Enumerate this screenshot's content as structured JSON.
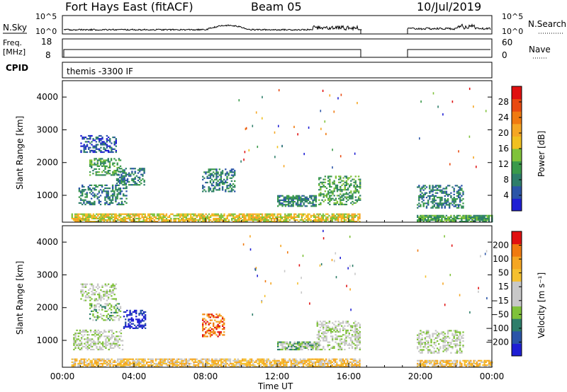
{
  "header": {
    "station": "Fort Hays East (fitACF)",
    "beam": "Beam 05",
    "date": "10/Jul/2019"
  },
  "noise_panel": {
    "left_label": "N.Sky",
    "right_label": "N.Search",
    "left_ticks": [
      "10^5",
      "10^0"
    ],
    "right_ticks": [
      "10^5",
      "10^0"
    ]
  },
  "freq_panel": {
    "left_label_line1": "Freq.",
    "left_label_line2": "[MHz]",
    "right_label": "Nave",
    "left_ticks": [
      "18",
      "8"
    ],
    "right_ticks": [
      "60",
      "0"
    ]
  },
  "cpid_panel": {
    "label": "CPID",
    "text": "themis -3300 IF"
  },
  "x_axis": {
    "label": "Time UT",
    "ticks": [
      "00:00",
      "04:00",
      "08:00",
      "12:00",
      "16:00",
      "20:00",
      "00:00"
    ]
  },
  "chart_data": [
    {
      "type": "heatmap",
      "quantity": "power",
      "xlabel": "Time UT",
      "ylabel": "Slant Range [km]",
      "xlim_hours": [
        0,
        24
      ],
      "ylim_km": [
        180,
        4500
      ],
      "y_ticks": [
        "1000",
        "2000",
        "3000",
        "4000"
      ],
      "colorbar": {
        "label": "Power [dB]",
        "ticks": [
          "4",
          "8",
          "12",
          "16",
          "20",
          "24",
          "28"
        ],
        "colors": [
          "#1f1fd4",
          "#2b55a8",
          "#2e7e6a",
          "#3a9a4a",
          "#7fc23a",
          "#f0c020",
          "#f5a623",
          "#f07a10",
          "#e84a10",
          "#e01010"
        ]
      },
      "regions": [
        {
          "t0": 0.9,
          "t1": 3.6,
          "r0": 700,
          "r1": 1300,
          "level": 2
        },
        {
          "t0": 1.5,
          "t1": 3.2,
          "r0": 1600,
          "r1": 2100,
          "level": 3
        },
        {
          "t0": 1.0,
          "t1": 3.0,
          "r0": 2300,
          "r1": 2800,
          "level": 1
        },
        {
          "t0": 3.0,
          "t1": 4.6,
          "r0": 1300,
          "r1": 1800,
          "level": 2
        },
        {
          "t0": 7.8,
          "t1": 9.6,
          "r0": 1100,
          "r1": 1800,
          "level": 2
        },
        {
          "t0": 12.0,
          "t1": 14.2,
          "r0": 650,
          "r1": 1000,
          "level": 2
        },
        {
          "t0": 14.3,
          "t1": 16.6,
          "r0": 700,
          "r1": 1600,
          "level": 3
        },
        {
          "t0": 19.8,
          "t1": 22.4,
          "r0": 600,
          "r1": 1300,
          "level": 2
        },
        {
          "t0": 0.5,
          "t1": 16.6,
          "r0": 180,
          "r1": 450,
          "level": 5
        },
        {
          "t0": 19.8,
          "t1": 24.0,
          "r0": 180,
          "r1": 400,
          "level": 3
        }
      ]
    },
    {
      "type": "heatmap",
      "quantity": "velocity",
      "xlabel": "Time UT",
      "ylabel": "Slant Range [km]",
      "xlim_hours": [
        0,
        24
      ],
      "ylim_km": [
        180,
        4500
      ],
      "y_ticks": [
        "1000",
        "2000",
        "3000",
        "4000"
      ],
      "colorbar": {
        "label": "Velocity [m s⁻¹]",
        "ticks": [
          "200",
          "100",
          "50",
          "15",
          "−15",
          "−50",
          "−100",
          "−200"
        ],
        "colors": [
          "#1f1fd4",
          "#2b55a8",
          "#2e7e6a",
          "#7fc23a",
          "#c8c8c8",
          "#c8c8c8",
          "#f5c030",
          "#f5a623",
          "#f07a10",
          "#e01010"
        ]
      },
      "regions": [
        {
          "t0": 0.6,
          "t1": 3.4,
          "r0": 700,
          "r1": 1300,
          "level": 4
        },
        {
          "t0": 1.0,
          "t1": 3.0,
          "r0": 2200,
          "r1": 2700,
          "level": 4
        },
        {
          "t0": 1.5,
          "t1": 3.2,
          "r0": 1600,
          "r1": 2100,
          "level": 3
        },
        {
          "t0": 3.4,
          "t1": 4.6,
          "r0": 1350,
          "r1": 1900,
          "level": 0
        },
        {
          "t0": 7.8,
          "t1": 9.0,
          "r0": 1100,
          "r1": 1800,
          "level": 8
        },
        {
          "t0": 12.0,
          "t1": 14.3,
          "r0": 700,
          "r1": 950,
          "level": 3
        },
        {
          "t0": 14.2,
          "t1": 16.6,
          "r0": 700,
          "r1": 1600,
          "level": 4
        },
        {
          "t0": 19.8,
          "t1": 22.4,
          "r0": 600,
          "r1": 1300,
          "level": 4
        },
        {
          "t0": 0.5,
          "t1": 16.6,
          "r0": 180,
          "r1": 450,
          "level": 6
        },
        {
          "t0": 19.8,
          "t1": 24.0,
          "r0": 180,
          "r1": 400,
          "level": 6
        }
      ]
    }
  ]
}
